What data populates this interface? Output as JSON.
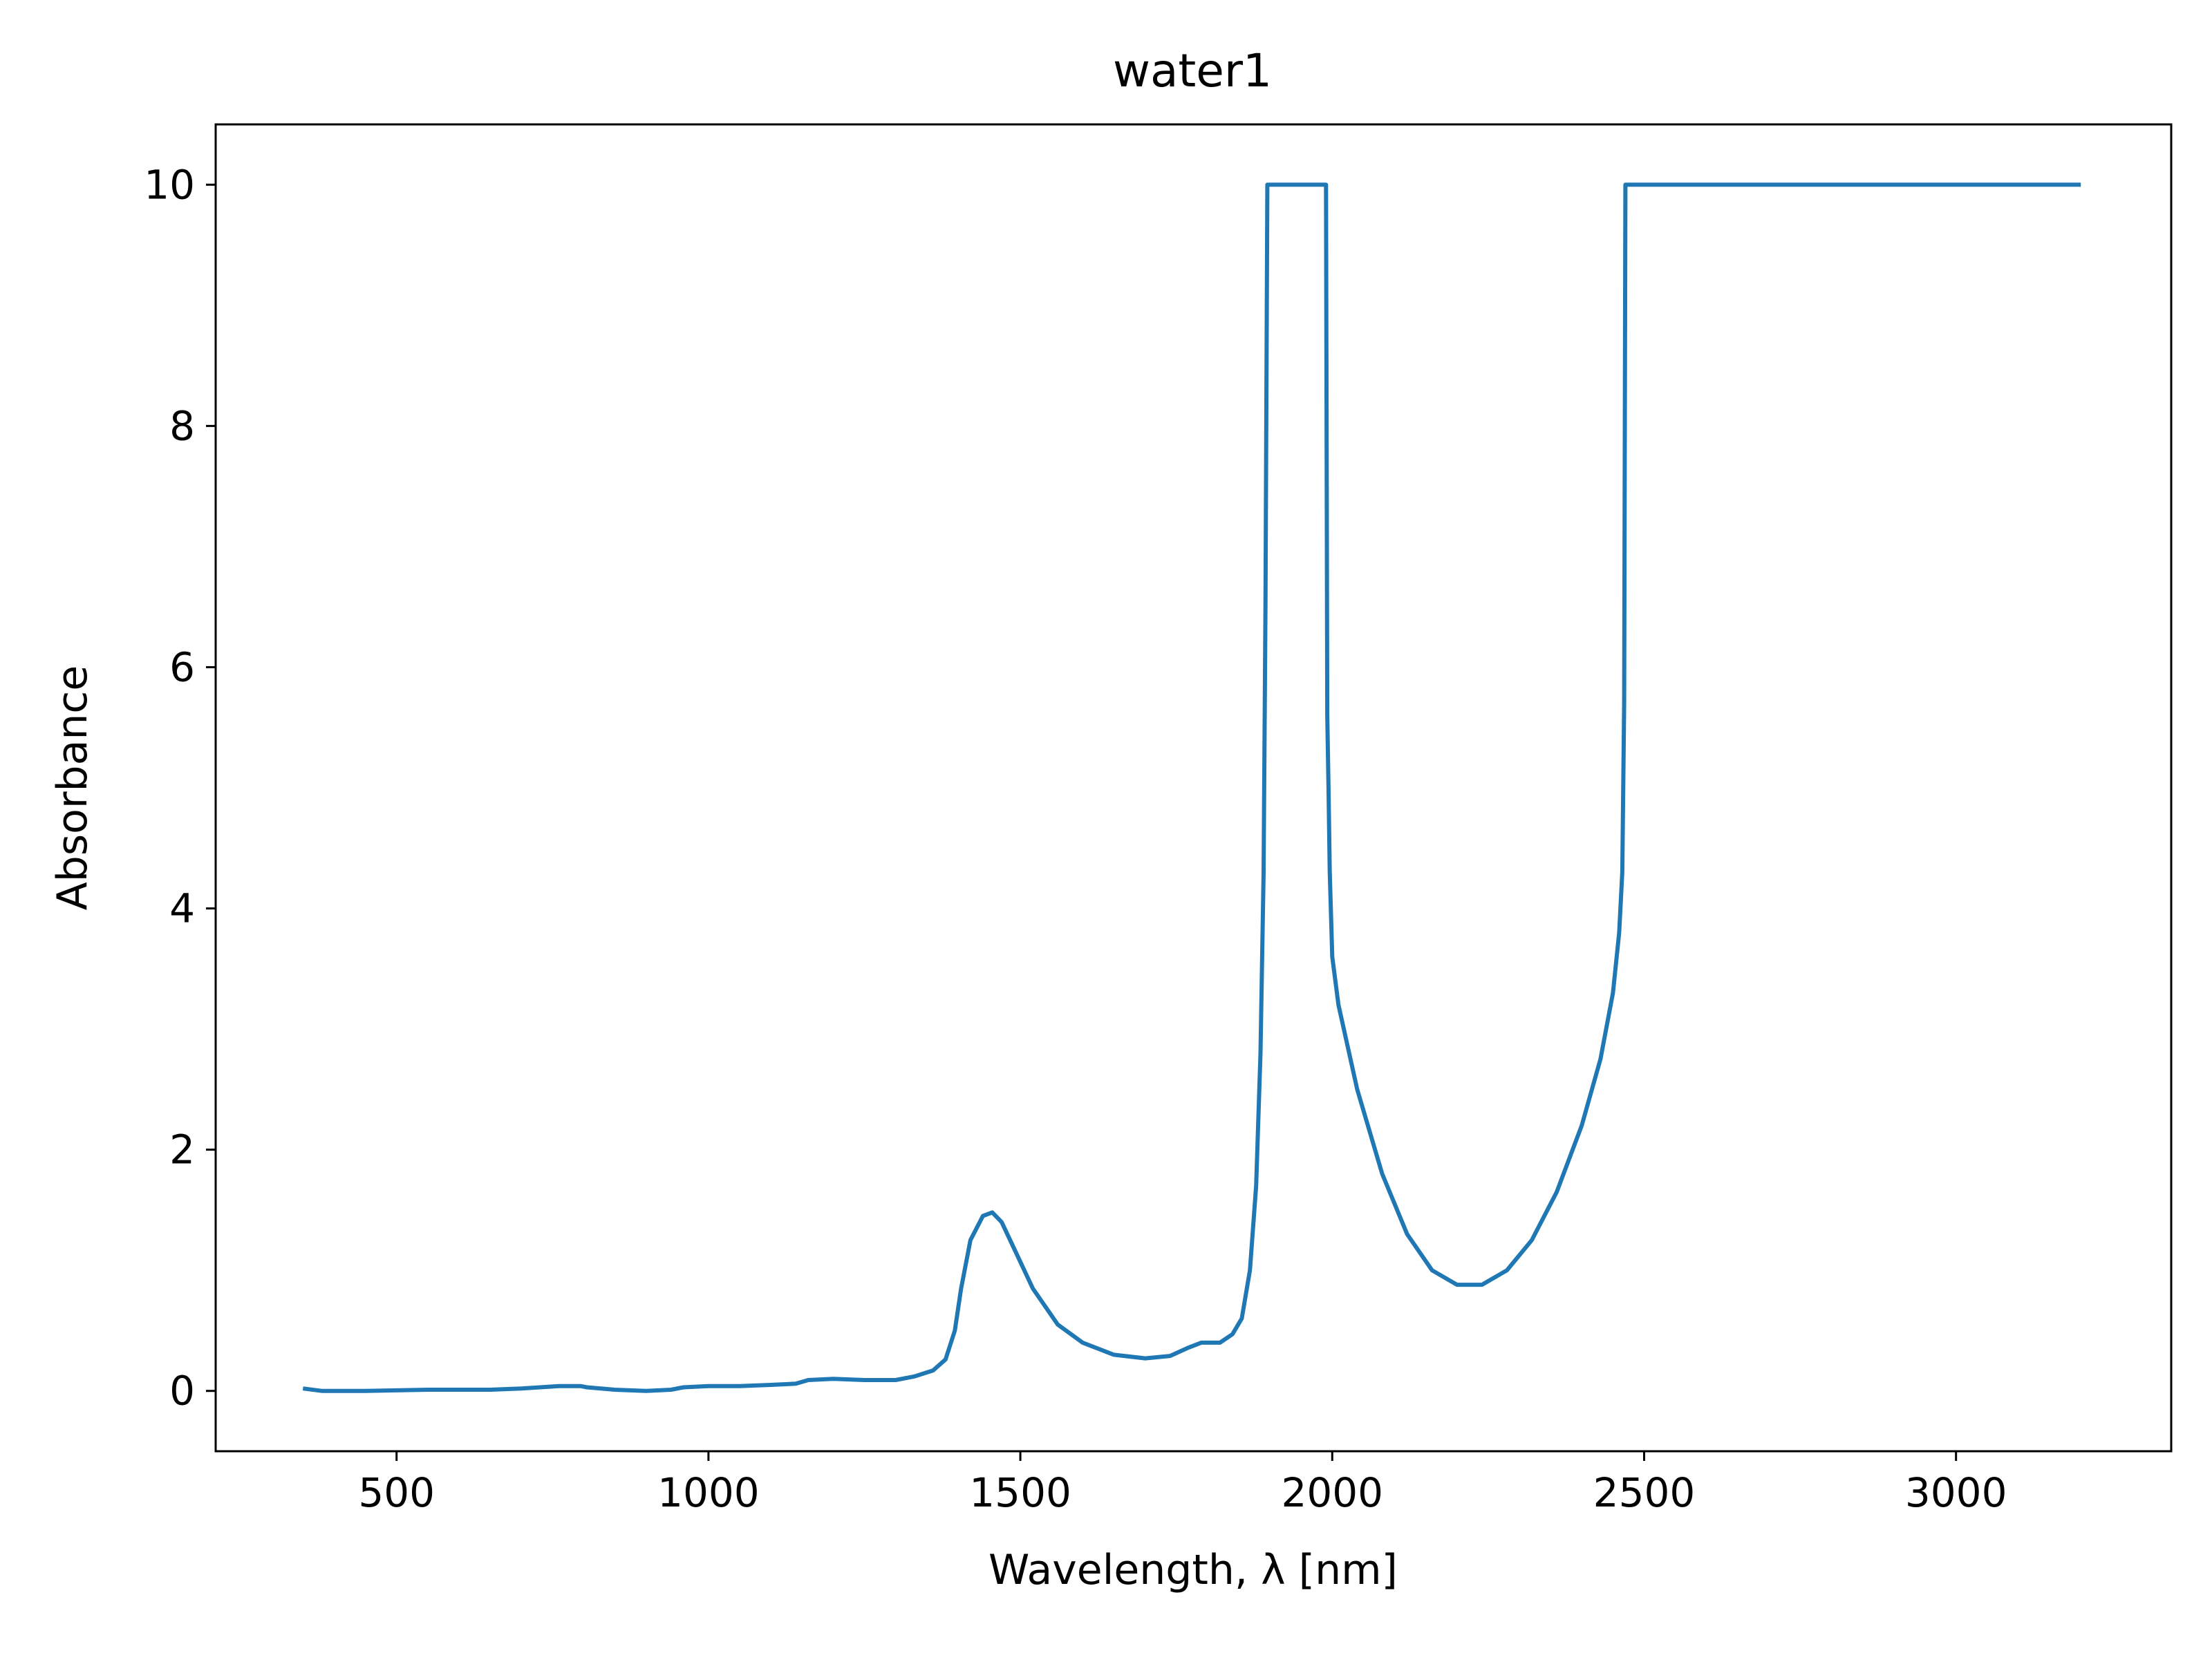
{
  "chart_data": {
    "type": "line",
    "title": "water1",
    "xlabel": "Wavelength, λ [nm]",
    "ylabel": "Absorbance",
    "xlim": [
      210,
      3345
    ],
    "ylim": [
      -0.5,
      10.5
    ],
    "xticks": [
      500,
      1000,
      1500,
      2000,
      2500,
      3000
    ],
    "yticks": [
      0,
      2,
      4,
      6,
      8,
      10
    ],
    "xtick_labels": [
      "500",
      "1000",
      "1500",
      "2000",
      "2500",
      "3000"
    ],
    "ytick_labels": [
      "0",
      "2",
      "4",
      "6",
      "8",
      "10"
    ],
    "grid": false,
    "legend": "none",
    "series": [
      {
        "color": "#1f77b4",
        "points": [
          [
            350,
            0.02
          ],
          [
            380,
            0.0
          ],
          [
            450,
            0.0
          ],
          [
            550,
            0.01
          ],
          [
            650,
            0.01
          ],
          [
            700,
            0.02
          ],
          [
            760,
            0.04
          ],
          [
            795,
            0.04
          ],
          [
            805,
            0.03
          ],
          [
            850,
            0.01
          ],
          [
            900,
            0.0
          ],
          [
            940,
            0.01
          ],
          [
            960,
            0.03
          ],
          [
            1000,
            0.04
          ],
          [
            1050,
            0.04
          ],
          [
            1100,
            0.05
          ],
          [
            1140,
            0.06
          ],
          [
            1160,
            0.09
          ],
          [
            1200,
            0.1
          ],
          [
            1250,
            0.09
          ],
          [
            1300,
            0.09
          ],
          [
            1330,
            0.12
          ],
          [
            1360,
            0.17
          ],
          [
            1380,
            0.26
          ],
          [
            1395,
            0.5
          ],
          [
            1405,
            0.85
          ],
          [
            1420,
            1.25
          ],
          [
            1440,
            1.45
          ],
          [
            1455,
            1.48
          ],
          [
            1470,
            1.4
          ],
          [
            1490,
            1.18
          ],
          [
            1520,
            0.85
          ],
          [
            1560,
            0.55
          ],
          [
            1600,
            0.4
          ],
          [
            1650,
            0.3
          ],
          [
            1700,
            0.27
          ],
          [
            1740,
            0.29
          ],
          [
            1770,
            0.36
          ],
          [
            1790,
            0.4
          ],
          [
            1820,
            0.4
          ],
          [
            1840,
            0.47
          ],
          [
            1855,
            0.6
          ],
          [
            1868,
            1.0
          ],
          [
            1878,
            1.7
          ],
          [
            1885,
            2.8
          ],
          [
            1890,
            4.3
          ],
          [
            1893,
            6.5
          ],
          [
            1896,
            10.0
          ],
          [
            1990,
            10.0
          ],
          [
            1992,
            5.6
          ],
          [
            1994,
            5.0
          ],
          [
            1996,
            4.3
          ],
          [
            2000,
            3.6
          ],
          [
            2010,
            3.2
          ],
          [
            2040,
            2.5
          ],
          [
            2080,
            1.8
          ],
          [
            2120,
            1.3
          ],
          [
            2160,
            1.0
          ],
          [
            2200,
            0.88
          ],
          [
            2240,
            0.88
          ],
          [
            2280,
            1.0
          ],
          [
            2320,
            1.25
          ],
          [
            2360,
            1.65
          ],
          [
            2400,
            2.2
          ],
          [
            2430,
            2.75
          ],
          [
            2450,
            3.3
          ],
          [
            2460,
            3.8
          ],
          [
            2465,
            4.3
          ],
          [
            2468,
            5.7
          ],
          [
            2470,
            10.0
          ],
          [
            3200,
            10.0
          ]
        ]
      }
    ]
  }
}
